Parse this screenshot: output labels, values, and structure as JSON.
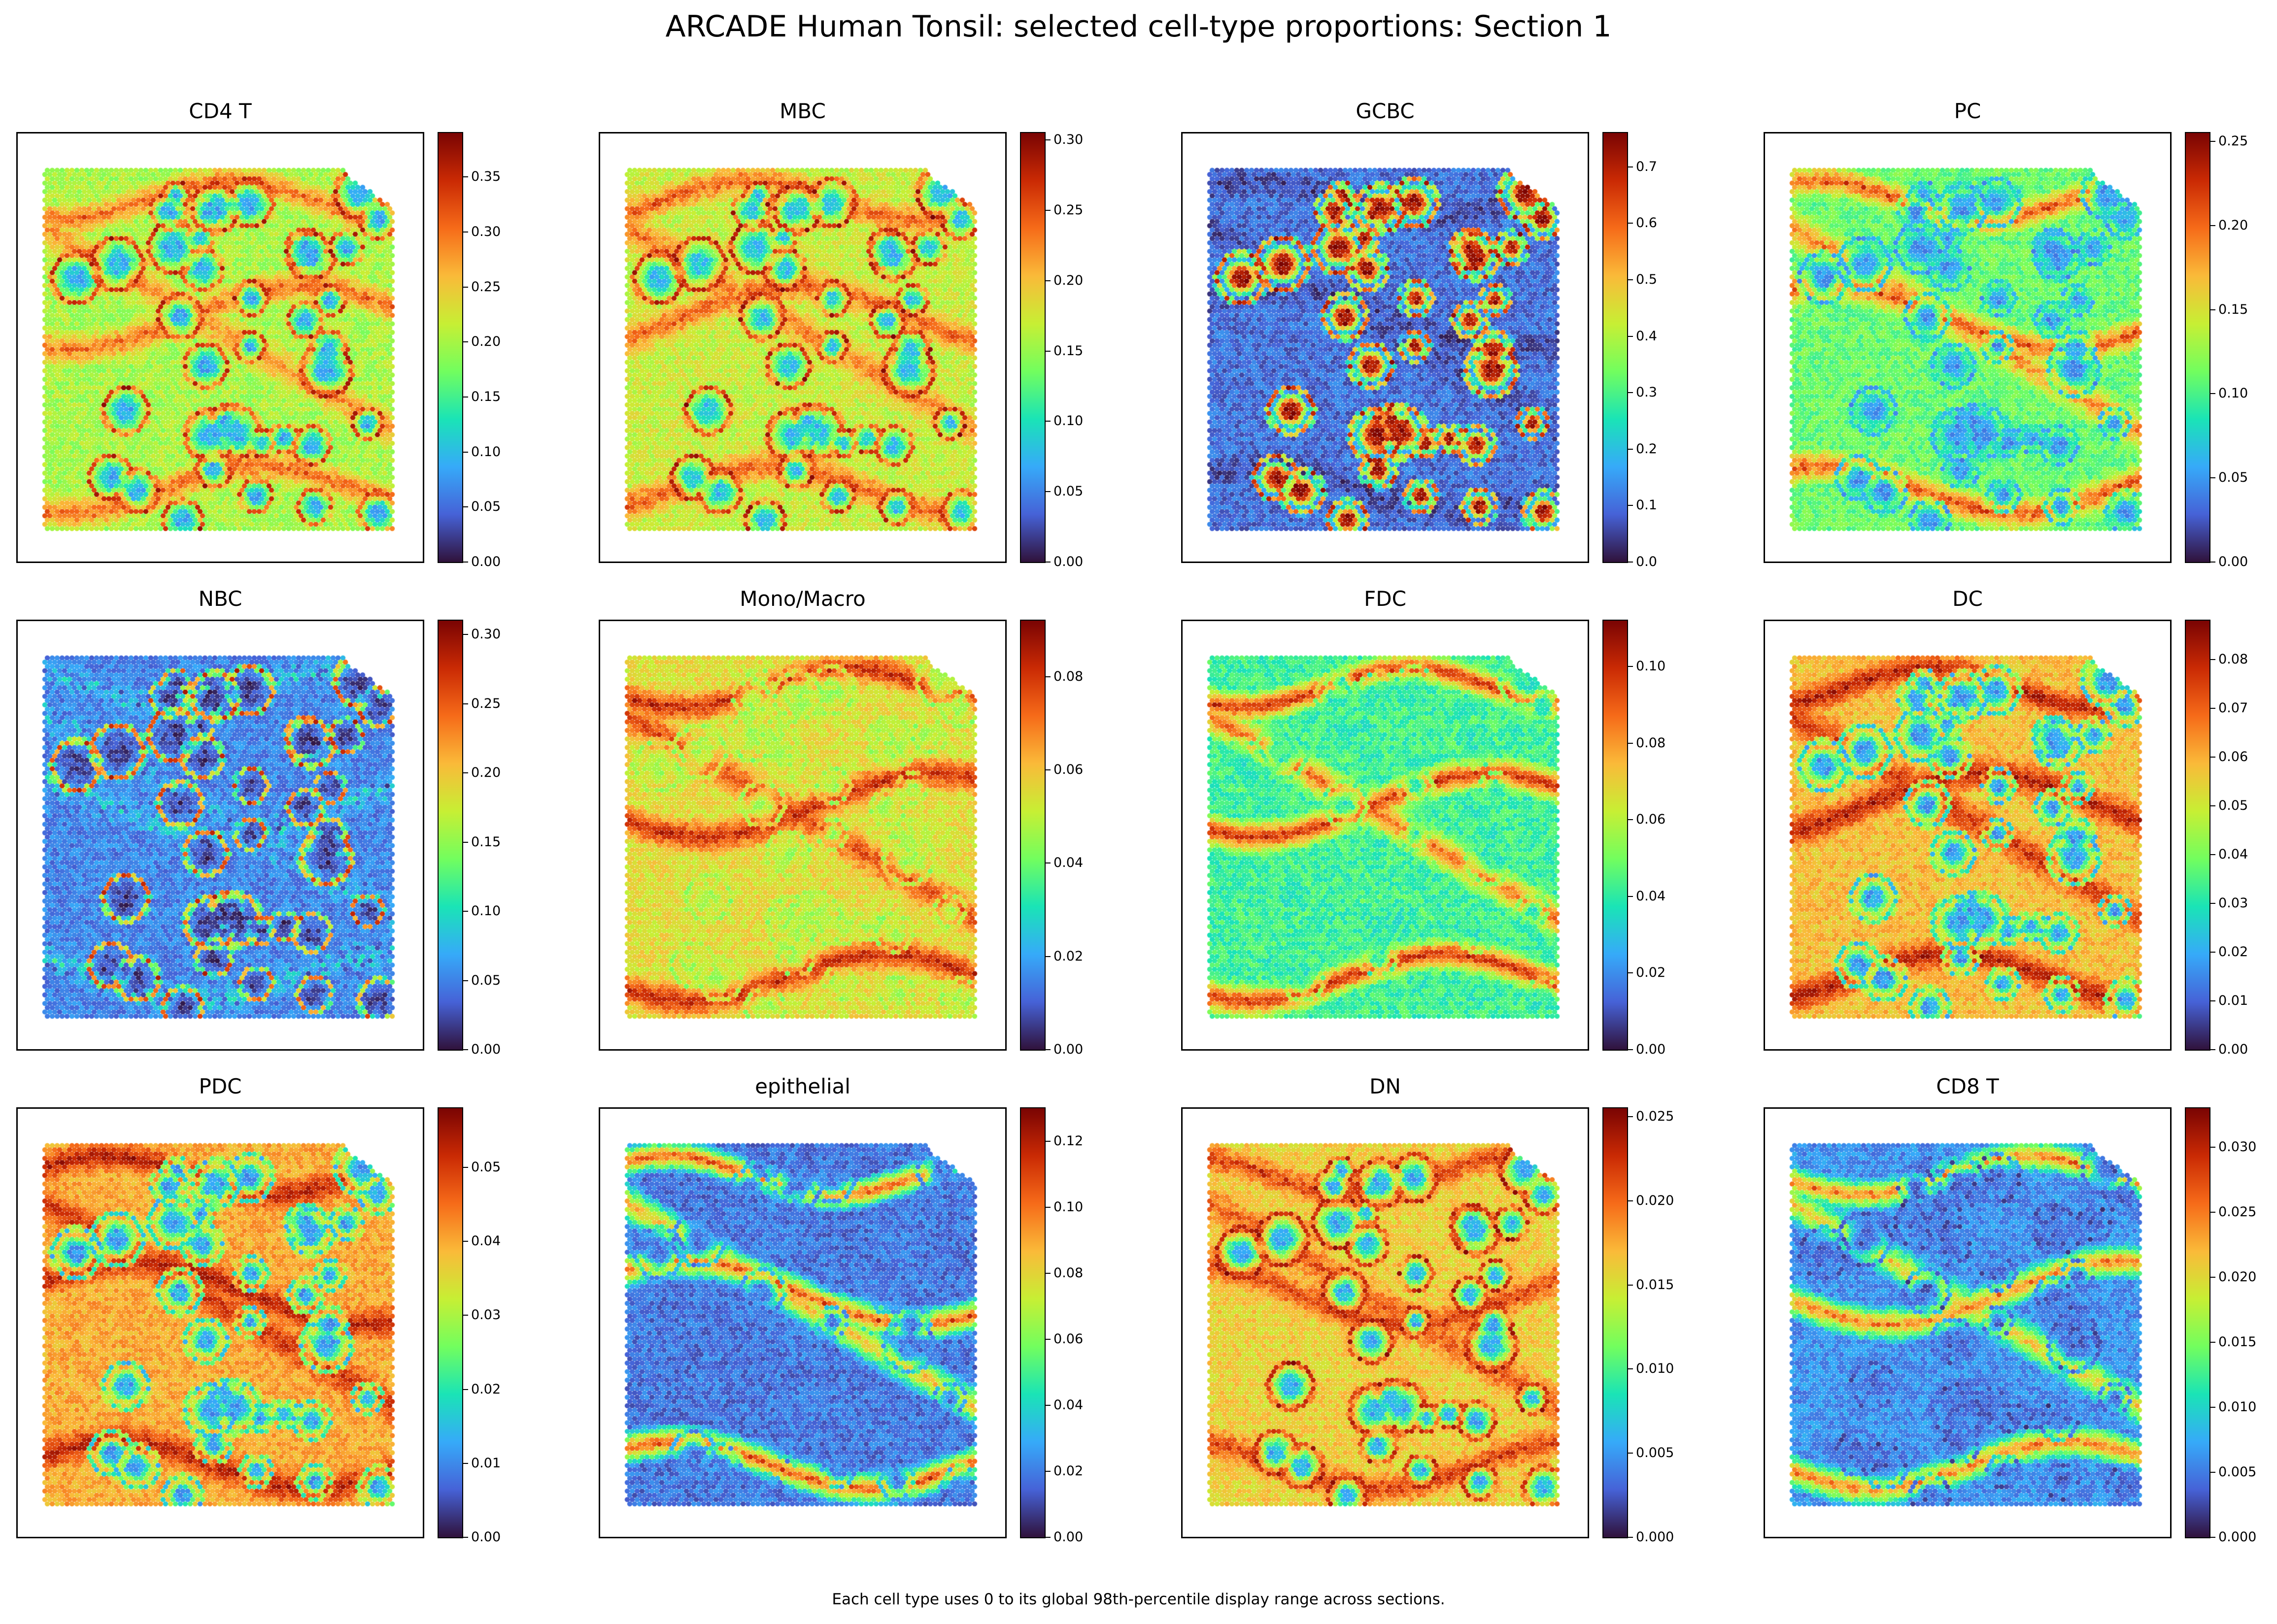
{
  "title": "ARCADE Human Tonsil: selected cell-type proportions: Section 1",
  "footnote": "Each cell type uses 0 to its global 98th-percentile display range across sections.",
  "colormap": "turbo",
  "colormap_stops": [
    "#30123b",
    "#4662d7",
    "#36aaf9",
    "#1ae4b6",
    "#72fe5e",
    "#c7ef34",
    "#faba39",
    "#f66b19",
    "#ca2a04",
    "#7a0403"
  ],
  "chart_data": [
    {
      "type": "heatmap",
      "title": "CD4 T",
      "vmin": 0,
      "vmax": 0.39,
      "colorbar_ticks": [
        "0.00",
        "0.05",
        "0.10",
        "0.15",
        "0.20",
        "0.25",
        "0.30",
        "0.35"
      ],
      "tick_values": [
        0,
        0.05,
        0.1,
        0.15,
        0.2,
        0.25,
        0.3,
        0.35
      ],
      "pattern": {
        "base": 0.2,
        "blobs": [
          0.09,
          0.36
        ],
        "bands": [
          0.3,
          0.34
        ],
        "seed": 11
      }
    },
    {
      "type": "heatmap",
      "title": "MBC",
      "vmin": 0,
      "vmax": 0.305,
      "colorbar_ticks": [
        "0.00",
        "0.05",
        "0.10",
        "0.15",
        "0.20",
        "0.25",
        "0.30"
      ],
      "tick_values": [
        0,
        0.05,
        0.1,
        0.15,
        0.2,
        0.25,
        0.3
      ],
      "pattern": {
        "base": 0.17,
        "blobs": [
          0.08,
          0.29
        ],
        "bands": [
          0.24,
          0.27
        ],
        "seed": 23
      }
    },
    {
      "type": "heatmap",
      "title": "GCBC",
      "vmin": 0,
      "vmax": 0.76,
      "colorbar_ticks": [
        "0.0",
        "0.1",
        "0.2",
        "0.3",
        "0.4",
        "0.5",
        "0.6",
        "0.7"
      ],
      "tick_values": [
        0,
        0.1,
        0.2,
        0.3,
        0.4,
        0.5,
        0.6,
        0.7
      ],
      "pattern": {
        "base": 0.1,
        "blobs": [
          0.72,
          0.72
        ],
        "bands": [
          0.06,
          0.04
        ],
        "seed": 37
      }
    },
    {
      "type": "heatmap",
      "title": "PC",
      "vmin": 0,
      "vmax": 0.255,
      "colorbar_ticks": [
        "0.00",
        "0.05",
        "0.10",
        "0.15",
        "0.20",
        "0.25"
      ],
      "tick_values": [
        0,
        0.05,
        0.1,
        0.15,
        0.2,
        0.25
      ],
      "pattern": {
        "base": 0.11,
        "blobs": [
          0.05,
          0.05
        ],
        "bands": [
          0.2,
          0.24
        ],
        "seed": 41
      }
    },
    {
      "type": "heatmap",
      "title": "NBC",
      "vmin": 0,
      "vmax": 0.31,
      "colorbar_ticks": [
        "0.00",
        "0.05",
        "0.10",
        "0.15",
        "0.20",
        "0.25",
        "0.30"
      ],
      "tick_values": [
        0,
        0.05,
        0.1,
        0.15,
        0.2,
        0.25,
        0.3
      ],
      "pattern": {
        "base": 0.05,
        "blobs": [
          0.02,
          0.28
        ],
        "bands": [
          0.03,
          0.12
        ],
        "seed": 53
      }
    },
    {
      "type": "heatmap",
      "title": "Mono/Macro",
      "vmin": 0,
      "vmax": 0.092,
      "colorbar_ticks": [
        "0.00",
        "0.02",
        "0.04",
        "0.06",
        "0.08"
      ],
      "tick_values": [
        0,
        0.02,
        0.04,
        0.06,
        0.08
      ],
      "pattern": {
        "base": 0.055,
        "blobs": [
          0.048,
          0.045
        ],
        "bands": [
          0.085,
          0.088
        ],
        "seed": 67
      }
    },
    {
      "type": "heatmap",
      "title": "FDC",
      "vmin": 0,
      "vmax": 0.112,
      "colorbar_ticks": [
        "0.00",
        "0.02",
        "0.04",
        "0.06",
        "0.08",
        "0.10"
      ],
      "tick_values": [
        0,
        0.02,
        0.04,
        0.06,
        0.08,
        0.1
      ],
      "pattern": {
        "base": 0.042,
        "blobs": [
          0.04,
          0.045
        ],
        "bands": [
          0.105,
          0.108
        ],
        "seed": 71
      }
    },
    {
      "type": "heatmap",
      "title": "DC",
      "vmin": 0,
      "vmax": 0.088,
      "colorbar_ticks": [
        "0.00",
        "0.01",
        "0.02",
        "0.03",
        "0.04",
        "0.05",
        "0.06",
        "0.07",
        "0.08"
      ],
      "tick_values": [
        0,
        0.01,
        0.02,
        0.03,
        0.04,
        0.05,
        0.06,
        0.07,
        0.08
      ],
      "pattern": {
        "base": 0.058,
        "blobs": [
          0.018,
          0.02
        ],
        "bands": [
          0.084,
          0.086
        ],
        "seed": 83
      }
    },
    {
      "type": "heatmap",
      "title": "PDC",
      "vmin": 0,
      "vmax": 0.058,
      "colorbar_ticks": [
        "0.00",
        "0.01",
        "0.02",
        "0.03",
        "0.04",
        "0.05"
      ],
      "tick_values": [
        0,
        0.01,
        0.02,
        0.03,
        0.04,
        0.05
      ],
      "pattern": {
        "base": 0.04,
        "blobs": [
          0.012,
          0.014
        ],
        "bands": [
          0.055,
          0.056
        ],
        "seed": 97
      }
    },
    {
      "type": "heatmap",
      "title": "epithelial",
      "vmin": 0,
      "vmax": 0.13,
      "colorbar_ticks": [
        "0.00",
        "0.02",
        "0.04",
        "0.06",
        "0.08",
        "0.10",
        "0.12"
      ],
      "tick_values": [
        0,
        0.02,
        0.04,
        0.06,
        0.08,
        0.1,
        0.12
      ],
      "pattern": {
        "base": 0.018,
        "blobs": [
          0.02,
          0.02
        ],
        "bands": [
          0.11,
          0.125
        ],
        "seed": 101
      }
    },
    {
      "type": "heatmap",
      "title": "DN",
      "vmin": 0,
      "vmax": 0.0255,
      "colorbar_ticks": [
        "0.000",
        "0.005",
        "0.010",
        "0.015",
        "0.020",
        "0.025"
      ],
      "tick_values": [
        0,
        0.005,
        0.01,
        0.015,
        0.02,
        0.025
      ],
      "pattern": {
        "base": 0.016,
        "blobs": [
          0.006,
          0.024
        ],
        "bands": [
          0.021,
          0.024
        ],
        "seed": 113
      }
    },
    {
      "type": "heatmap",
      "title": "CD8 T",
      "vmin": 0,
      "vmax": 0.033,
      "colorbar_ticks": [
        "0.000",
        "0.005",
        "0.010",
        "0.015",
        "0.020",
        "0.025",
        "0.030"
      ],
      "tick_values": [
        0,
        0.005,
        0.01,
        0.015,
        0.02,
        0.025,
        0.03
      ],
      "pattern": {
        "base": 0.006,
        "blobs": [
          0.004,
          0.003
        ],
        "bands": [
          0.025,
          0.03
        ],
        "seed": 127
      }
    }
  ]
}
